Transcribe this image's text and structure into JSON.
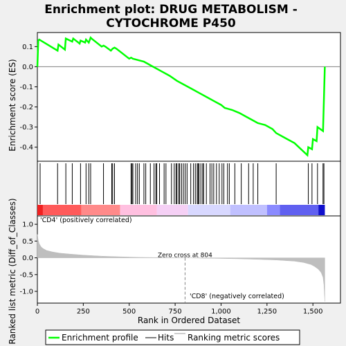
{
  "chart_data": {
    "type": "line",
    "title_line1": "Enrichment plot: DRUG METABOLISM -",
    "title_line2": "CYTOCHROME P450",
    "es_panel": {
      "ylabel": "Enrichment score (ES)",
      "ylim": [
        -0.47,
        0.17
      ],
      "yticks": [
        0.1,
        0.0,
        -0.1,
        -0.2,
        -0.3,
        -0.4
      ],
      "ytick_labels": [
        "0.1",
        "0.0",
        "-0.1",
        "-0.2",
        "-0.3",
        "-0.4"
      ],
      "line_color": "#00ff00",
      "x": [
        0,
        5,
        10,
        110,
        115,
        150,
        155,
        190,
        195,
        230,
        235,
        260,
        265,
        280,
        290,
        295,
        350,
        360,
        370,
        400,
        410,
        420,
        430,
        500,
        510,
        520,
        560,
        580,
        600,
        620,
        640,
        680,
        720,
        760,
        800,
        840,
        880,
        920,
        960,
        1000,
        1020,
        1040,
        1060,
        1100,
        1140,
        1180,
        1200,
        1240,
        1280,
        1300,
        1340,
        1400,
        1470,
        1475,
        1495,
        1500,
        1520,
        1525,
        1555,
        1565
      ],
      "y": [
        0.0,
        0.13,
        0.135,
        0.08,
        0.11,
        0.085,
        0.14,
        0.125,
        0.14,
        0.115,
        0.13,
        0.12,
        0.135,
        0.12,
        0.145,
        0.14,
        0.1,
        0.105,
        0.1,
        0.08,
        0.09,
        0.095,
        0.09,
        0.04,
        0.045,
        0.04,
        0.03,
        0.025,
        0.015,
        0.005,
        -0.005,
        -0.025,
        -0.045,
        -0.07,
        -0.09,
        -0.11,
        -0.13,
        -0.15,
        -0.17,
        -0.19,
        -0.205,
        -0.21,
        -0.215,
        -0.23,
        -0.25,
        -0.27,
        -0.28,
        -0.29,
        -0.31,
        -0.33,
        -0.35,
        -0.38,
        -0.44,
        -0.4,
        -0.41,
        -0.36,
        -0.37,
        -0.3,
        -0.32,
        0.0
      ]
    },
    "hits_panel": {
      "hits": [
        15,
        110,
        155,
        190,
        235,
        265,
        280,
        290,
        360,
        405,
        410,
        420,
        510,
        515,
        520,
        535,
        545,
        555,
        580,
        590,
        615,
        635,
        645,
        650,
        665,
        690,
        700,
        730,
        745,
        755,
        760,
        770,
        775,
        785,
        795,
        805,
        815,
        835,
        850,
        860,
        870,
        875,
        880,
        890,
        900,
        905,
        920,
        940,
        950,
        960,
        975,
        990,
        1005,
        1015,
        1035,
        1045,
        1075,
        1110,
        1150,
        1175,
        1200,
        1300,
        1475,
        1495,
        1525,
        1555,
        1560
      ]
    },
    "ranked_panel": {
      "ylabel": "Ranked list metric (Diff_of_Classes)",
      "ylim": [
        -1.35,
        1.25
      ],
      "yticks": [
        1.0,
        0.5,
        0.0,
        -0.5,
        -1.0
      ],
      "ytick_labels": [
        "1.0",
        "0.5",
        "0.0",
        "-0.5",
        "-1.0"
      ],
      "x": [
        0,
        5,
        10,
        20,
        30,
        50,
        80,
        120,
        180,
        250,
        350,
        450,
        550,
        650,
        750,
        804,
        900,
        1000,
        1100,
        1200,
        1300,
        1400,
        1450,
        1490,
        1510,
        1530,
        1545,
        1555,
        1560,
        1565
      ],
      "y": [
        0.7,
        0.52,
        0.42,
        0.33,
        0.28,
        0.22,
        0.18,
        0.14,
        0.11,
        0.08,
        0.05,
        0.03,
        0.015,
        0.008,
        0.003,
        0.0,
        -0.01,
        -0.02,
        -0.03,
        -0.045,
        -0.065,
        -0.1,
        -0.14,
        -0.2,
        -0.26,
        -0.34,
        -0.44,
        -0.58,
        -0.8,
        -1.3
      ],
      "fill_color": "#bebebe",
      "zero_cross_text": "Zero cross at 804",
      "zero_cross_x": 804,
      "pos_label": "'CD4' (positively correlated)",
      "pos_color": "#ff0000",
      "neg_label": "'CD8' (negatively correlated)",
      "neg_color": "#0000ff"
    },
    "xaxis": {
      "xlabel": "Rank in Ordered Dataset",
      "xlim": [
        0,
        1650
      ],
      "xticks": [
        0,
        250,
        500,
        750,
        1000,
        1250,
        1500
      ],
      "xtick_labels": [
        "0",
        "250",
        "500",
        "750",
        "1,000",
        "1,250",
        "1,500"
      ],
      "n_genes": 1565
    },
    "colorbar": {
      "segments": [
        {
          "start": 0,
          "end": 30,
          "color": "#f02020"
        },
        {
          "start": 30,
          "end": 240,
          "color": "#ff5a5a"
        },
        {
          "start": 240,
          "end": 450,
          "color": "#ff8a8a"
        },
        {
          "start": 450,
          "end": 650,
          "color": "#ffc0e0"
        },
        {
          "start": 650,
          "end": 820,
          "color": "#f5d0f5"
        },
        {
          "start": 820,
          "end": 1050,
          "color": "#d8d8ff"
        },
        {
          "start": 1050,
          "end": 1250,
          "color": "#c0c0ff"
        },
        {
          "start": 1250,
          "end": 1320,
          "color": "#8a8aff"
        },
        {
          "start": 1320,
          "end": 1530,
          "color": "#6060f0"
        },
        {
          "start": 1530,
          "end": 1565,
          "color": "#1010cc"
        }
      ]
    },
    "legend": {
      "items": [
        {
          "label": "Enrichment profile",
          "color": "#00ff00"
        },
        {
          "label": "Hits",
          "color": "#000000"
        },
        {
          "label": "Ranking metric scores",
          "color": "#bebebe"
        }
      ]
    }
  }
}
